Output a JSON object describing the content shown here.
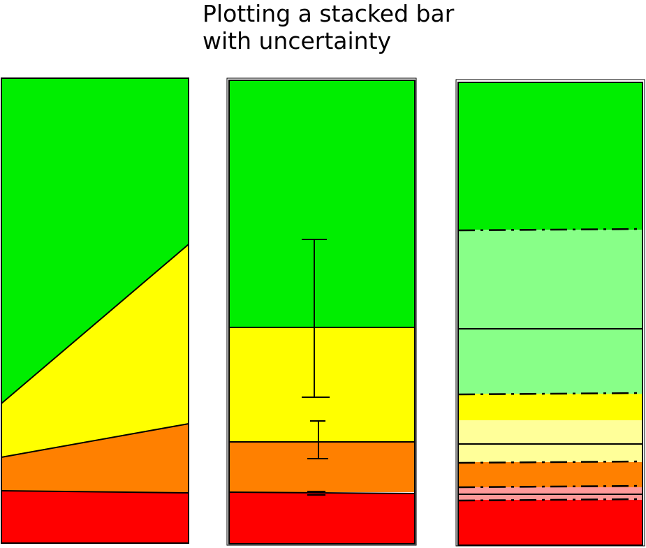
{
  "title_line1": "Plotting a stacked bar",
  "title_line2": "with uncertainty",
  "colors": {
    "green": "#00ee00",
    "light_green": "#88ff88",
    "yellow": "#ffff00",
    "light_yellow": "#ffff99",
    "orange": "#ff8000",
    "light_orange": "#ff9999",
    "red": "#ff0000",
    "outline": "#000000"
  },
  "panels": [
    {
      "name": "sloped-boundary-panel",
      "style": "sloped"
    },
    {
      "name": "error-bar-panel",
      "style": "error-bars"
    },
    {
      "name": "banded-uncertainty-panel",
      "style": "dashed-bands"
    }
  ]
}
